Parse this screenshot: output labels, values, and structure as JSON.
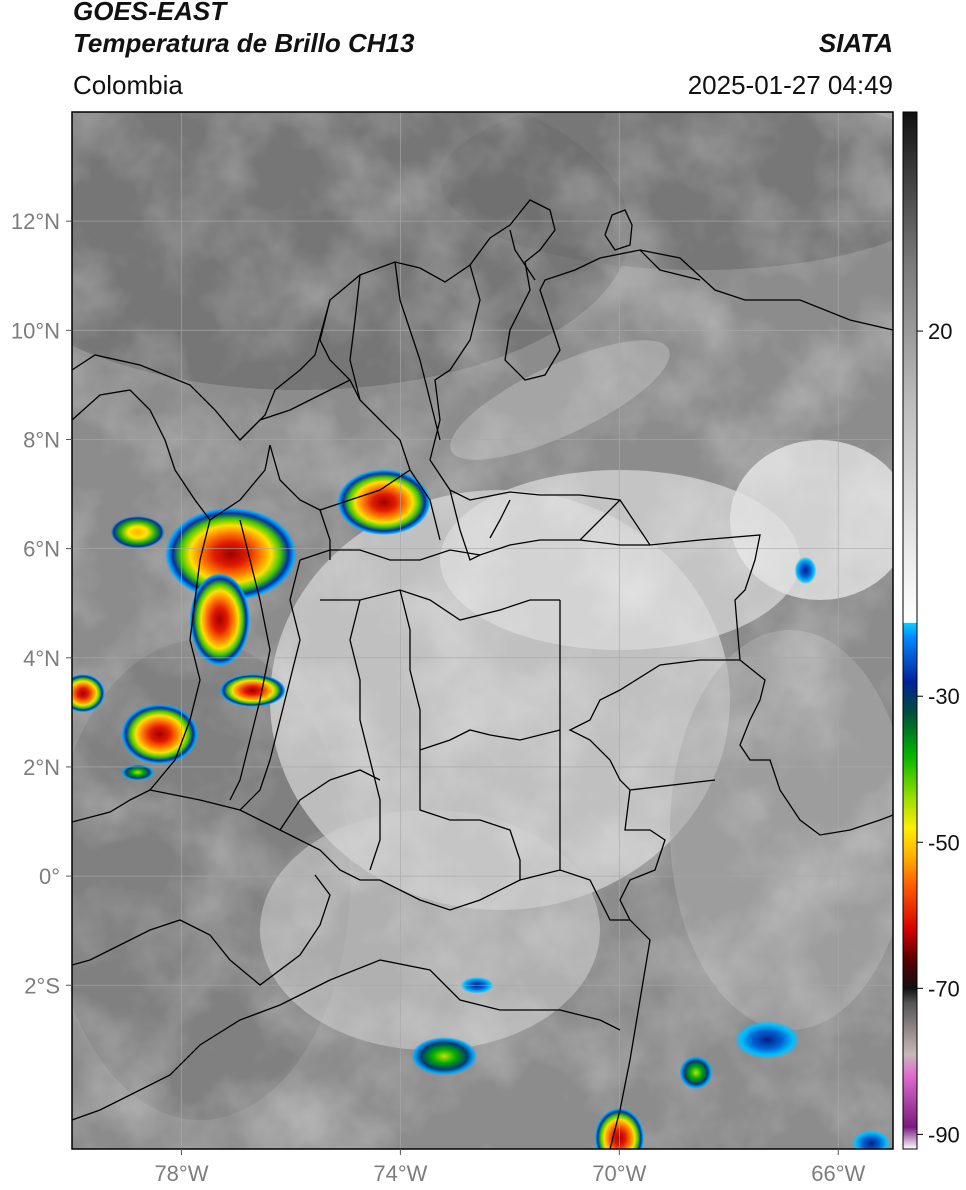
{
  "header": {
    "satellite": "GOES-EAST",
    "product": "Temperatura de Brillo CH13",
    "region": "Colombia",
    "brand": "SIATA",
    "timestamp": "2025-01-27 04:49"
  },
  "map": {
    "lon_range": [
      -80,
      -65
    ],
    "lat_range": [
      -5,
      14
    ],
    "lat_ticks": [
      {
        "value": 12,
        "label": "12°N"
      },
      {
        "value": 10,
        "label": "10°N"
      },
      {
        "value": 8,
        "label": "8°N"
      },
      {
        "value": 6,
        "label": "6°N"
      },
      {
        "value": 4,
        "label": "4°N"
      },
      {
        "value": 2,
        "label": "2°N"
      },
      {
        "value": 0,
        "label": "0°"
      },
      {
        "value": -2,
        "label": "2°S"
      }
    ],
    "lon_ticks": [
      {
        "value": -78,
        "label": "78°W"
      },
      {
        "value": -74,
        "label": "74°W"
      },
      {
        "value": -70,
        "label": "70°W"
      },
      {
        "value": -66,
        "label": "66°W"
      }
    ],
    "gridlines": true,
    "storm_cells": [
      {
        "lon": -77.1,
        "lat": 5.9,
        "rx": 1.2,
        "ry": 0.85,
        "core": "red"
      },
      {
        "lon": -77.3,
        "lat": 4.7,
        "rx": 0.55,
        "ry": 0.85,
        "core": "red"
      },
      {
        "lon": -74.3,
        "lat": 6.85,
        "rx": 0.85,
        "ry": 0.6,
        "core": "red"
      },
      {
        "lon": -76.7,
        "lat": 3.4,
        "rx": 0.6,
        "ry": 0.3,
        "core": "red"
      },
      {
        "lon": -78.4,
        "lat": 2.6,
        "rx": 0.7,
        "ry": 0.55,
        "core": "red"
      },
      {
        "lon": -79.8,
        "lat": 3.35,
        "rx": 0.4,
        "ry": 0.35,
        "core": "red"
      },
      {
        "lon": -78.8,
        "lat": 6.3,
        "rx": 0.5,
        "ry": 0.3,
        "core": "yellow"
      },
      {
        "lon": -78.8,
        "lat": 1.9,
        "rx": 0.3,
        "ry": 0.15,
        "core": "green"
      },
      {
        "lon": -70.0,
        "lat": -4.8,
        "rx": 0.45,
        "ry": 0.55,
        "core": "red"
      },
      {
        "lon": -68.6,
        "lat": -3.6,
        "rx": 0.3,
        "ry": 0.3,
        "core": "green"
      },
      {
        "lon": -73.2,
        "lat": -3.3,
        "rx": 0.6,
        "ry": 0.35,
        "core": "green"
      },
      {
        "lon": -72.6,
        "lat": -2.0,
        "rx": 0.3,
        "ry": 0.15,
        "core": "blue"
      },
      {
        "lon": -67.3,
        "lat": -3.0,
        "rx": 0.6,
        "ry": 0.35,
        "core": "blue"
      },
      {
        "lon": -65.4,
        "lat": -4.9,
        "rx": 0.35,
        "ry": 0.25,
        "core": "blue"
      },
      {
        "lon": -66.6,
        "lat": 5.6,
        "rx": 0.2,
        "ry": 0.25,
        "core": "blue"
      }
    ]
  },
  "colorbar": {
    "vmin": -92,
    "vmax": 50,
    "ticks": [
      {
        "value": 20,
        "label": "20"
      },
      {
        "value": -30,
        "label": "-30"
      },
      {
        "value": -50,
        "label": "-50"
      },
      {
        "value": -70,
        "label": "-70"
      },
      {
        "value": -90,
        "label": "-90"
      }
    ],
    "stops": [
      {
        "value": -92,
        "color": "#ffffff"
      },
      {
        "value": -89,
        "color": "#7a1c7e"
      },
      {
        "value": -82,
        "color": "#e06ad0"
      },
      {
        "value": -79,
        "color": "#c8b8b8"
      },
      {
        "value": -72,
        "color": "#555555"
      },
      {
        "value": -70,
        "color": "#111111"
      },
      {
        "value": -66,
        "color": "#5a0000"
      },
      {
        "value": -62,
        "color": "#d40000"
      },
      {
        "value": -56,
        "color": "#ff5a00"
      },
      {
        "value": -52,
        "color": "#ffb000"
      },
      {
        "value": -48,
        "color": "#ffee00"
      },
      {
        "value": -44,
        "color": "#9be000"
      },
      {
        "value": -38,
        "color": "#00b400"
      },
      {
        "value": -32,
        "color": "#004a40"
      },
      {
        "value": -28,
        "color": "#00229a"
      },
      {
        "value": -22,
        "color": "#0088ff"
      },
      {
        "value": -20,
        "color": "#00d0ff"
      },
      {
        "value": -19.9,
        "color": "#ffffff"
      },
      {
        "value": 10,
        "color": "#bdbdbd"
      },
      {
        "value": 30,
        "color": "#777777"
      },
      {
        "value": 50,
        "color": "#111111"
      }
    ]
  }
}
